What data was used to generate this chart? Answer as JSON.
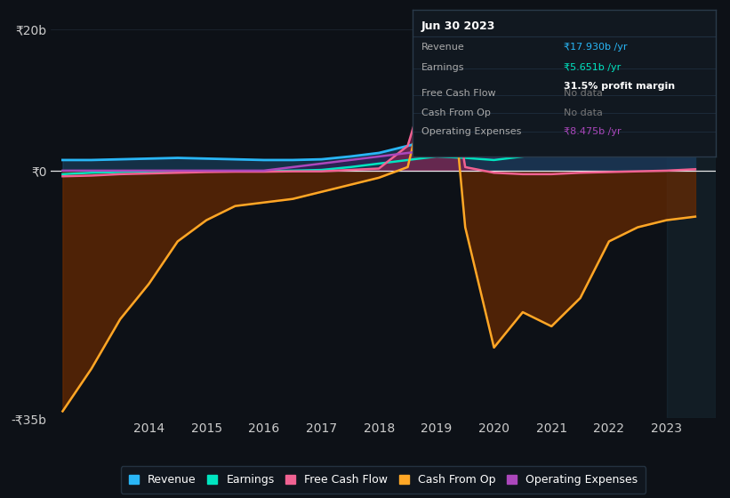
{
  "bg_color": "#0d1117",
  "plot_bg_color": "#0d1117",
  "ylim": [
    -35,
    22
  ],
  "yticks": [
    20,
    0,
    -35
  ],
  "ytick_labels": [
    "₹20b",
    "₹0",
    "-₹35b"
  ],
  "xlabel_years": [
    "2014",
    "2015",
    "2016",
    "2017",
    "2018",
    "2019",
    "2020",
    "2021",
    "2022",
    "2023"
  ],
  "legend_items": [
    {
      "label": "Revenue",
      "color": "#29b6f6"
    },
    {
      "label": "Earnings",
      "color": "#00e5c0"
    },
    {
      "label": "Free Cash Flow",
      "color": "#f06292"
    },
    {
      "label": "Cash From Op",
      "color": "#ffa726"
    },
    {
      "label": "Operating Expenses",
      "color": "#ab47bc"
    }
  ],
  "revenue": {
    "x": [
      2012.5,
      2013,
      2013.5,
      2014,
      2014.5,
      2015,
      2015.5,
      2016,
      2016.5,
      2017,
      2017.5,
      2018,
      2018.5,
      2019,
      2019.5,
      2020,
      2020.5,
      2021,
      2021.5,
      2022,
      2022.5,
      2023,
      2023.5
    ],
    "y": [
      1.5,
      1.5,
      1.6,
      1.7,
      1.8,
      1.7,
      1.6,
      1.5,
      1.5,
      1.6,
      2.0,
      2.5,
      3.5,
      4.5,
      5.0,
      5.5,
      6.0,
      7.0,
      9.0,
      11.0,
      13.0,
      15.0,
      17.93
    ],
    "color": "#29b6f6",
    "fill_color": "#1a4a6e"
  },
  "earnings": {
    "x": [
      2012.5,
      2013,
      2013.5,
      2014,
      2014.5,
      2015,
      2015.5,
      2016,
      2016.5,
      2017,
      2017.5,
      2018,
      2018.5,
      2019,
      2019.5,
      2020,
      2020.5,
      2021,
      2021.5,
      2022,
      2022.5,
      2023,
      2023.5
    ],
    "y": [
      -0.5,
      -0.3,
      -0.2,
      -0.1,
      -0.1,
      -0.1,
      -0.05,
      -0.05,
      0.0,
      0.1,
      0.5,
      1.0,
      1.5,
      2.0,
      1.8,
      1.5,
      2.0,
      2.5,
      3.0,
      3.5,
      4.0,
      4.8,
      5.651
    ],
    "color": "#00e5c0"
  },
  "free_cash_flow": {
    "x": [
      2012.5,
      2013,
      2013.5,
      2014,
      2014.5,
      2015,
      2015.5,
      2016,
      2016.5,
      2017,
      2017.5,
      2018,
      2018.5,
      2019,
      2019.25,
      2019.5,
      2020,
      2020.5,
      2021,
      2021.5,
      2022,
      2022.5,
      2023,
      2023.5
    ],
    "y": [
      -0.8,
      -0.7,
      -0.5,
      -0.4,
      -0.3,
      -0.2,
      -0.15,
      -0.15,
      -0.1,
      -0.1,
      0.1,
      0.3,
      3.5,
      17.0,
      13.0,
      0.5,
      -0.3,
      -0.5,
      -0.5,
      -0.3,
      -0.2,
      -0.1,
      0.0,
      0.2
    ],
    "color": "#f06292",
    "fill_color": "#8b2252"
  },
  "cash_from_op": {
    "x": [
      2012.5,
      2013,
      2013.5,
      2014,
      2014.5,
      2015,
      2015.5,
      2016,
      2016.5,
      2017,
      2017.5,
      2018,
      2018.5,
      2019,
      2019.25,
      2019.5,
      2020,
      2020.5,
      2021,
      2021.5,
      2022,
      2022.5,
      2023,
      2023.5
    ],
    "y": [
      -34.0,
      -28.0,
      -21.0,
      -16.0,
      -10.0,
      -7.0,
      -5.0,
      -4.5,
      -4.0,
      -3.0,
      -2.0,
      -1.0,
      0.5,
      17.5,
      14.0,
      -8.0,
      -25.0,
      -20.0,
      -22.0,
      -18.0,
      -10.0,
      -8.0,
      -7.0,
      -6.5
    ],
    "color": "#ffa726",
    "fill_color": "#6b2a00"
  },
  "op_expenses": {
    "x": [
      2012.5,
      2013,
      2013.5,
      2014,
      2014.5,
      2015,
      2015.5,
      2016,
      2016.5,
      2017,
      2017.5,
      2018,
      2018.5,
      2019,
      2019.5,
      2020,
      2020.5,
      2021,
      2021.5,
      2022,
      2022.5,
      2023,
      2023.5
    ],
    "y": [
      0.0,
      0.0,
      0.0,
      0.0,
      0.0,
      0.0,
      0.0,
      0.0,
      0.5,
      1.0,
      1.5,
      2.0,
      2.5,
      3.0,
      3.5,
      4.5,
      5.0,
      5.5,
      6.0,
      6.5,
      7.0,
      7.5,
      8.475
    ],
    "color": "#ab47bc",
    "fill_color": "#3d1a5c"
  },
  "tooltip": {
    "bg_color": "#111820",
    "border_color": "#2a3a4a",
    "title": "Jun 30 2023",
    "title_color": "#ffffff",
    "rows": [
      {
        "label": "Revenue",
        "value": "₹17.930b /yr",
        "value_color": "#29b6f6",
        "extra": ""
      },
      {
        "label": "Earnings",
        "value": "₹5.651b /yr",
        "value_color": "#00e5c0",
        "extra": "31.5% profit margin"
      },
      {
        "label": "Free Cash Flow",
        "value": "No data",
        "value_color": "#777777",
        "extra": ""
      },
      {
        "label": "Cash From Op",
        "value": "No data",
        "value_color": "#777777",
        "extra": ""
      },
      {
        "label": "Operating Expenses",
        "value": "₹8.475b /yr",
        "value_color": "#ab47bc",
        "extra": ""
      }
    ]
  }
}
